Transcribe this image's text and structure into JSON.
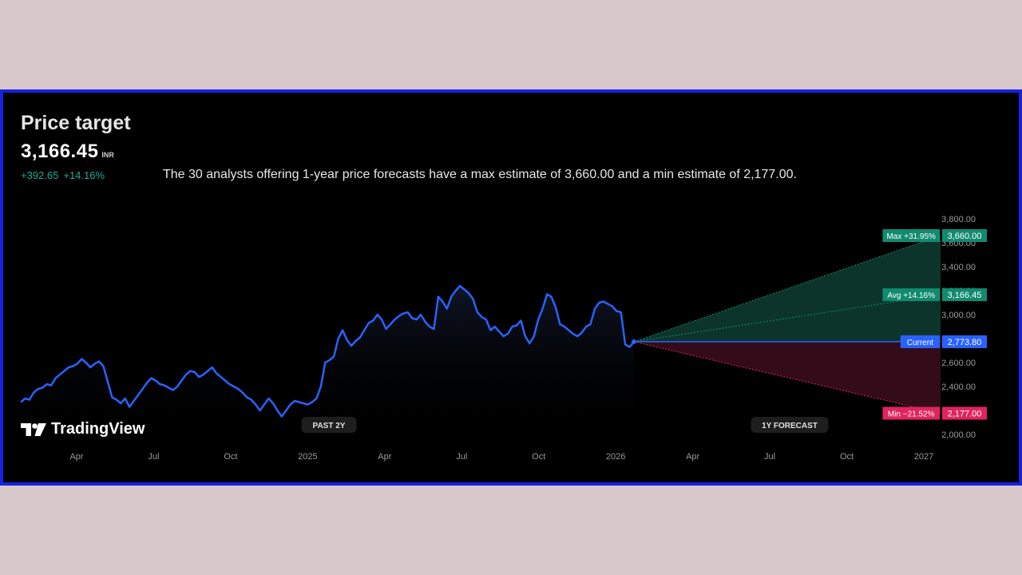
{
  "header": {
    "title": "Price target",
    "price": "3,166.45",
    "currency": "INR",
    "change_abs": "+392.65",
    "change_pct": "+14.16%",
    "description": "The 30 analysts offering 1-year price forecasts have a max estimate of 3,660.00 and a min estimate of 2,177.00."
  },
  "brand": {
    "name": "TradingView"
  },
  "chart_data": {
    "type": "line",
    "x_ticks": [
      "Apr",
      "Jul",
      "Oct",
      "2025",
      "Apr",
      "Jul",
      "Oct",
      "2026",
      "Apr",
      "Jul",
      "Oct",
      "2027"
    ],
    "y_ticks": [
      "3,800.00",
      "3,600.00",
      "3,400.00",
      "3,200.00",
      "3,000.00",
      "2,800.00",
      "2,600.00",
      "2,400.00",
      "2,200.00",
      "2,000.00"
    ],
    "ylim": [
      2000,
      3800
    ],
    "grid": false,
    "history_label": "PAST 2Y",
    "forecast_label": "1Y FORECAST",
    "history": [
      2270,
      2300,
      2290,
      2350,
      2380,
      2390,
      2420,
      2410,
      2470,
      2500,
      2530,
      2560,
      2570,
      2590,
      2630,
      2600,
      2560,
      2590,
      2610,
      2570,
      2440,
      2310,
      2290,
      2260,
      2300,
      2230,
      2280,
      2330,
      2380,
      2430,
      2470,
      2450,
      2420,
      2410,
      2390,
      2370,
      2400,
      2450,
      2500,
      2530,
      2520,
      2480,
      2500,
      2530,
      2560,
      2510,
      2480,
      2450,
      2420,
      2400,
      2380,
      2350,
      2310,
      2290,
      2250,
      2200,
      2250,
      2300,
      2260,
      2200,
      2150,
      2200,
      2250,
      2280,
      2270,
      2260,
      2250,
      2270,
      2300,
      2400,
      2600,
      2620,
      2650,
      2800,
      2870,
      2790,
      2740,
      2780,
      2810,
      2870,
      2930,
      2950,
      3000,
      2960,
      2880,
      2920,
      2960,
      2990,
      3010,
      3020,
      2970,
      2960,
      3000,
      2940,
      2900,
      2880,
      3150,
      3110,
      3050,
      3150,
      3200,
      3240,
      3210,
      3180,
      3130,
      3020,
      2980,
      2960,
      2870,
      2900,
      2860,
      2820,
      2840,
      2900,
      2910,
      2950,
      2820,
      2760,
      2820,
      2960,
      3050,
      3170,
      3150,
      3060,
      2920,
      2900,
      2870,
      2840,
      2820,
      2850,
      2900,
      2920,
      3050,
      3100,
      3110,
      3090,
      3070,
      3030,
      3020,
      2750,
      2730,
      2773.8
    ],
    "series": [
      {
        "name": "Max",
        "pct": "+31.95%",
        "value": 3660,
        "label": "3,660.00"
      },
      {
        "name": "Avg",
        "pct": "+14.16%",
        "value": 3166.45,
        "label": "3,166.45"
      },
      {
        "name": "Current",
        "pct": "",
        "value": 2773.8,
        "label": "2,773.80"
      },
      {
        "name": "Min",
        "pct": "−21.52%",
        "value": 2177,
        "label": "2,177.00"
      }
    ],
    "colors": {
      "line": "#2962ff",
      "max": "#118a6f",
      "avg": "#118a6f",
      "current": "#2962ff",
      "min": "#e0245e",
      "up_fill": "#0e3a30",
      "down_fill": "#3a0c1c"
    }
  }
}
